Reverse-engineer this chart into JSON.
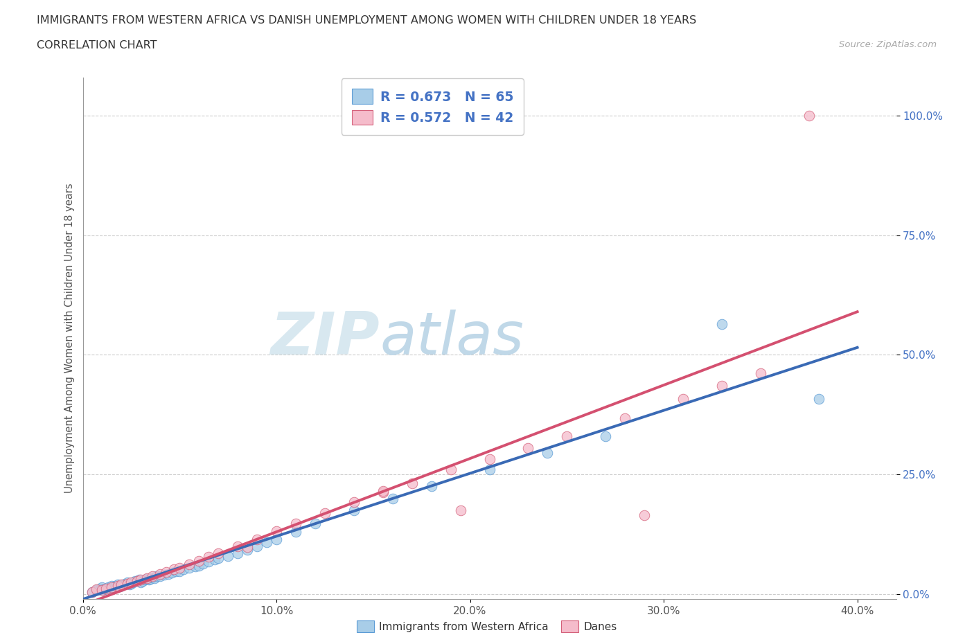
{
  "title_line1": "IMMIGRANTS FROM WESTERN AFRICA VS DANISH UNEMPLOYMENT AMONG WOMEN WITH CHILDREN UNDER 18 YEARS",
  "title_line2": "CORRELATION CHART",
  "source_text": "Source: ZipAtlas.com",
  "ylabel": "Unemployment Among Women with Children Under 18 years",
  "xlim": [
    0.0,
    0.42
  ],
  "ylim": [
    -0.01,
    1.08
  ],
  "ytick_labels": [
    "0.0%",
    "25.0%",
    "50.0%",
    "75.0%",
    "100.0%"
  ],
  "ytick_values": [
    0.0,
    0.25,
    0.5,
    0.75,
    1.0
  ],
  "xtick_labels": [
    "0.0%",
    "10.0%",
    "20.0%",
    "30.0%",
    "40.0%"
  ],
  "xtick_values": [
    0.0,
    0.1,
    0.2,
    0.3,
    0.4
  ],
  "legend_label1": "Immigrants from Western Africa",
  "legend_label2": "Danes",
  "r1": "0.673",
  "n1": "65",
  "r2": "0.572",
  "n2": "42",
  "color_blue": "#a8cde8",
  "color_pink": "#f5bccb",
  "edge_blue": "#5b9bd5",
  "edge_pink": "#d4607a",
  "line_blue": "#3a6ab5",
  "line_pink": "#d45070",
  "watermark_zip": "ZIP",
  "watermark_atlas": "atlas",
  "blue_x": [
    0.005,
    0.007,
    0.008,
    0.009,
    0.01,
    0.01,
    0.011,
    0.012,
    0.013,
    0.014,
    0.015,
    0.015,
    0.016,
    0.017,
    0.018,
    0.019,
    0.02,
    0.021,
    0.022,
    0.023,
    0.024,
    0.025,
    0.026,
    0.027,
    0.028,
    0.029,
    0.03,
    0.031,
    0.032,
    0.033,
    0.034,
    0.035,
    0.036,
    0.037,
    0.038,
    0.04,
    0.042,
    0.044,
    0.046,
    0.048,
    0.05,
    0.052,
    0.055,
    0.058,
    0.06,
    0.062,
    0.065,
    0.068,
    0.07,
    0.075,
    0.08,
    0.085,
    0.09,
    0.095,
    0.1,
    0.11,
    0.12,
    0.14,
    0.16,
    0.18,
    0.21,
    0.24,
    0.27,
    0.33,
    0.38
  ],
  "blue_y": [
    0.005,
    0.008,
    0.01,
    0.012,
    0.008,
    0.015,
    0.01,
    0.012,
    0.015,
    0.013,
    0.012,
    0.018,
    0.015,
    0.017,
    0.02,
    0.016,
    0.018,
    0.02,
    0.022,
    0.025,
    0.02,
    0.022,
    0.025,
    0.027,
    0.028,
    0.03,
    0.025,
    0.028,
    0.03,
    0.032,
    0.03,
    0.032,
    0.035,
    0.033,
    0.037,
    0.038,
    0.04,
    0.042,
    0.045,
    0.048,
    0.048,
    0.052,
    0.055,
    0.058,
    0.06,
    0.063,
    0.068,
    0.072,
    0.075,
    0.08,
    0.085,
    0.092,
    0.1,
    0.108,
    0.115,
    0.13,
    0.148,
    0.175,
    0.2,
    0.225,
    0.26,
    0.295,
    0.33,
    0.565,
    0.408
  ],
  "pink_x": [
    0.005,
    0.007,
    0.01,
    0.012,
    0.015,
    0.018,
    0.02,
    0.023,
    0.025,
    0.028,
    0.03,
    0.033,
    0.036,
    0.04,
    0.043,
    0.047,
    0.05,
    0.055,
    0.06,
    0.065,
    0.07,
    0.08,
    0.09,
    0.1,
    0.11,
    0.125,
    0.14,
    0.155,
    0.17,
    0.19,
    0.21,
    0.23,
    0.25,
    0.28,
    0.31,
    0.33,
    0.35,
    0.375,
    0.195,
    0.085,
    0.155,
    0.29
  ],
  "pink_y": [
    0.005,
    0.01,
    0.008,
    0.012,
    0.014,
    0.017,
    0.02,
    0.022,
    0.025,
    0.028,
    0.03,
    0.033,
    0.038,
    0.042,
    0.047,
    0.052,
    0.055,
    0.062,
    0.07,
    0.078,
    0.085,
    0.1,
    0.115,
    0.132,
    0.148,
    0.17,
    0.192,
    0.212,
    0.232,
    0.26,
    0.282,
    0.305,
    0.33,
    0.368,
    0.408,
    0.435,
    0.462,
    1.0,
    0.175,
    0.098,
    0.215,
    0.165
  ]
}
